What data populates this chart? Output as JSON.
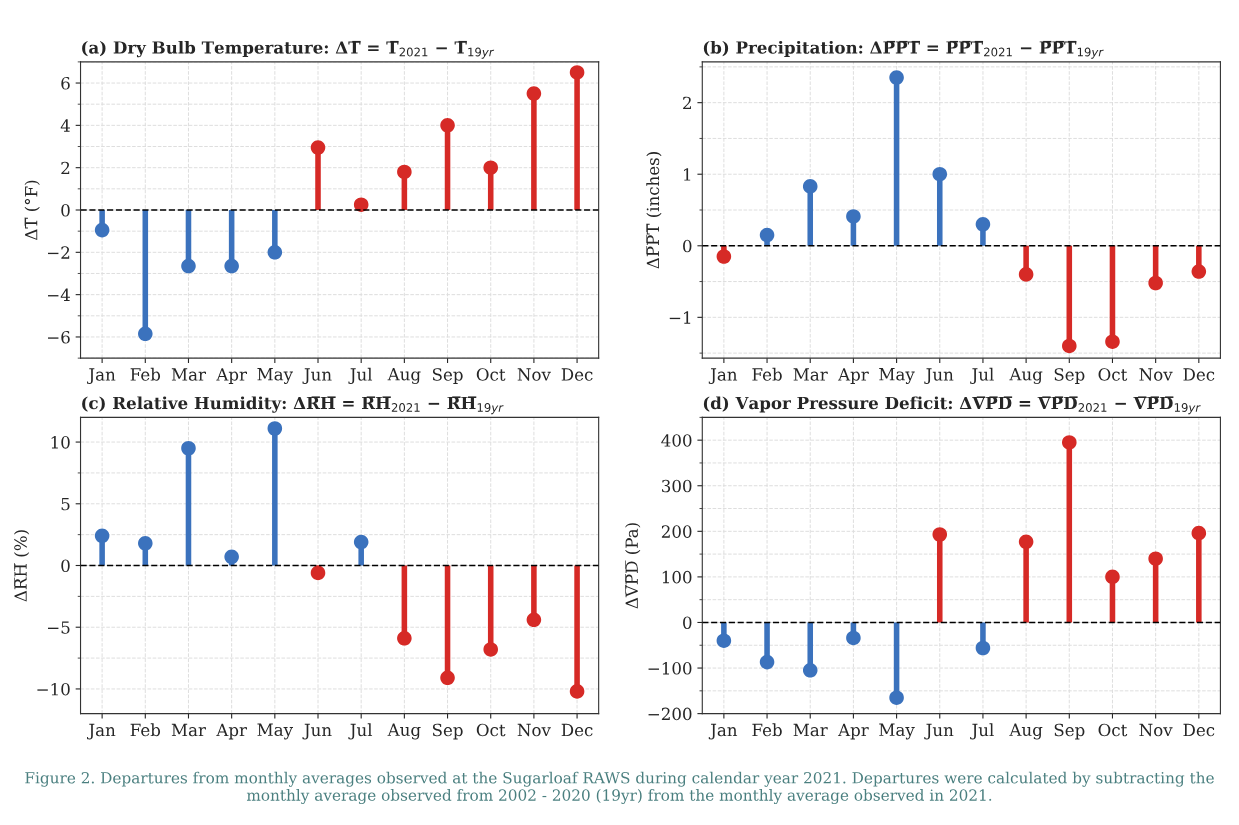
{
  "chart_data": [
    {
      "type": "lollipop",
      "title": "(a) Dry Bulb Temperature: ΔT̅ = T̅$_{2021}$ − T̅$_{19yr}$",
      "ylabel": "ΔT̅ (°F)",
      "categories": [
        "Jan",
        "Feb",
        "Mar",
        "Apr",
        "May",
        "Jun",
        "Jul",
        "Aug",
        "Sep",
        "Oct",
        "Nov",
        "Dec"
      ],
      "values": [
        -0.95,
        -5.85,
        -2.65,
        -2.65,
        -2.0,
        2.95,
        0.25,
        1.8,
        4.0,
        2.0,
        5.5,
        6.5
      ],
      "colors": [
        "#3b72bd",
        "#3b72bd",
        "#3b72bd",
        "#3b72bd",
        "#3b72bd",
        "#d62a26",
        "#d62a26",
        "#d62a26",
        "#d62a26",
        "#d62a26",
        "#d62a26",
        "#d62a26"
      ],
      "ylim": [
        -7,
        7
      ],
      "yticks": [
        -6,
        -4,
        -2,
        0,
        2,
        4,
        6
      ],
      "grid": true,
      "marker": "circle",
      "ref_lines": [
        {
          "axis": "y",
          "value": 0,
          "color": "#000000",
          "line_style": "dashed"
        }
      ]
    },
    {
      "type": "lollipop",
      "title": "(b) Precipitation: ΔP̅P̅T̅ = P̅P̅T̅$_{2021}$ − P̅P̅T̅$_{19yr}$",
      "ylabel": "ΔP̅P̅T̅ (inches)",
      "categories": [
        "Jan",
        "Feb",
        "Mar",
        "Apr",
        "May",
        "Jun",
        "Jul",
        "Aug",
        "Sep",
        "Oct",
        "Nov",
        "Dec"
      ],
      "values": [
        -0.15,
        0.15,
        0.83,
        0.41,
        2.35,
        1.0,
        0.3,
        -0.4,
        -1.4,
        -1.34,
        -0.52,
        -0.36
      ],
      "colors": [
        "#d62a26",
        "#3b72bd",
        "#3b72bd",
        "#3b72bd",
        "#3b72bd",
        "#3b72bd",
        "#3b72bd",
        "#d62a26",
        "#d62a26",
        "#d62a26",
        "#d62a26",
        "#d62a26"
      ],
      "ylim": [
        -1.57,
        2.57
      ],
      "yticks": [
        -1,
        0,
        1,
        2
      ],
      "grid": true,
      "marker": "circle",
      "ref_lines": [
        {
          "axis": "y",
          "value": 0,
          "color": "#000000",
          "line_style": "dashed"
        }
      ]
    },
    {
      "type": "lollipop",
      "title": "(c) Relative Humidity: ΔR̅H̅ = R̅H̅$_{2021}$ − R̅H̅$_{19yr}$",
      "ylabel": "ΔR̅H̅ (%)",
      "categories": [
        "Jan",
        "Feb",
        "Mar",
        "Apr",
        "May",
        "Jun",
        "Jul",
        "Aug",
        "Sep",
        "Oct",
        "Nov",
        "Dec"
      ],
      "values": [
        2.4,
        1.8,
        9.5,
        0.7,
        11.1,
        -0.6,
        1.9,
        -5.9,
        -9.1,
        -6.8,
        -4.4,
        -10.2
      ],
      "colors": [
        "#3b72bd",
        "#3b72bd",
        "#3b72bd",
        "#3b72bd",
        "#3b72bd",
        "#d62a26",
        "#3b72bd",
        "#d62a26",
        "#d62a26",
        "#d62a26",
        "#d62a26",
        "#d62a26"
      ],
      "ylim": [
        -12,
        12
      ],
      "yticks": [
        -10,
        -5,
        0,
        5,
        10
      ],
      "grid": true,
      "marker": "circle",
      "ref_lines": [
        {
          "axis": "y",
          "value": 0,
          "color": "#000000",
          "line_style": "dashed"
        }
      ]
    },
    {
      "type": "lollipop",
      "title": "(d) Vapor Pressure Deficit: ΔV̅P̅D̅ = V̅P̅D̅$_{2021}$ − V̅P̅D̅$_{19yr}$",
      "ylabel": "ΔV̅P̅D̅ (Pa)",
      "categories": [
        "Jan",
        "Feb",
        "Mar",
        "Apr",
        "May",
        "Jun",
        "Jul",
        "Aug",
        "Sep",
        "Oct",
        "Nov",
        "Dec"
      ],
      "values": [
        -40,
        -87,
        -105,
        -34,
        -165,
        193,
        -56,
        177,
        395,
        100,
        140,
        196
      ],
      "colors": [
        "#3b72bd",
        "#3b72bd",
        "#3b72bd",
        "#3b72bd",
        "#3b72bd",
        "#d62a26",
        "#3b72bd",
        "#d62a26",
        "#d62a26",
        "#d62a26",
        "#d62a26",
        "#d62a26"
      ],
      "ylim": [
        -200,
        450
      ],
      "yticks": [
        -200,
        -100,
        0,
        100,
        200,
        300,
        400
      ],
      "grid": true,
      "marker": "circle",
      "ref_lines": [
        {
          "axis": "y",
          "value": 0,
          "color": "#000000",
          "line_style": "dashed"
        }
      ],
      "annotations": [
        "Figure 2. Departures from monthly averages observed at the Sugarloaf RAWS during calendar year 2021. Departures were calculated by subtracting the monthly average observed from 2002 - 2020 (19yr) from the monthly average observed in 2021."
      ]
    }
  ]
}
